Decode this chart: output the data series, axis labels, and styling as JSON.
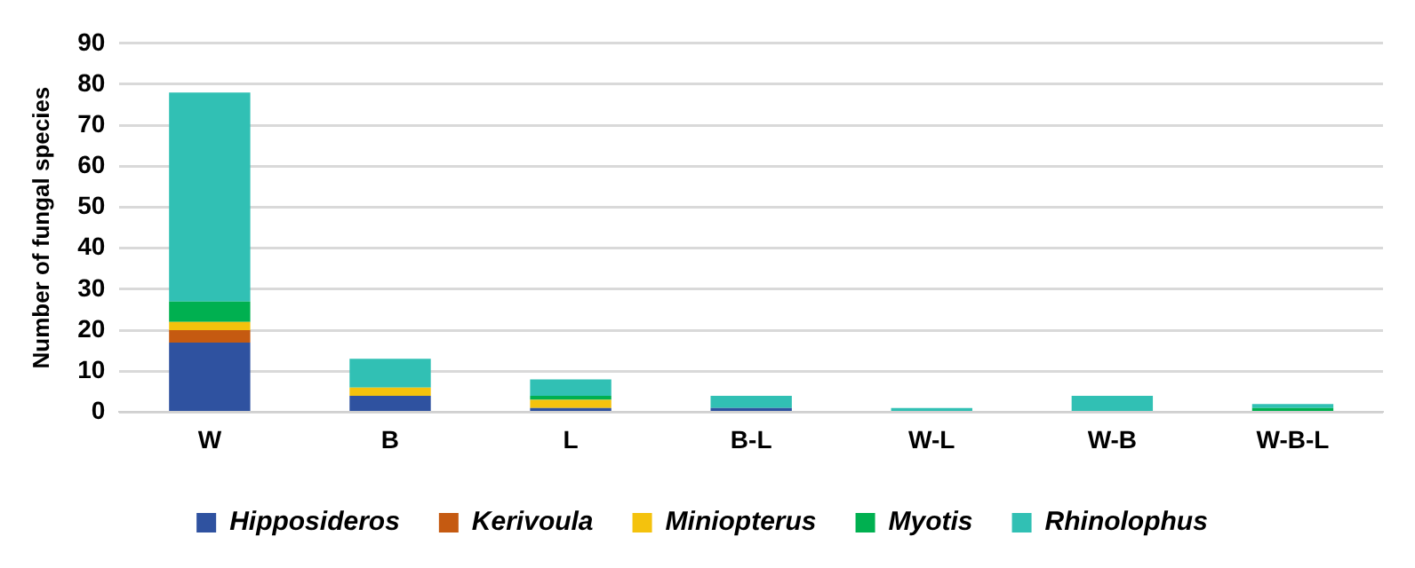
{
  "chart_data": {
    "type": "bar",
    "ylabel": "Number of fungal species",
    "categories": [
      "W",
      "B",
      "L",
      "B-L",
      "W-L",
      "W-B",
      "W-B-L"
    ],
    "stacked": true,
    "ylim": [
      0,
      90
    ],
    "yticks": [
      0,
      10,
      20,
      30,
      40,
      50,
      60,
      70,
      80,
      90
    ],
    "grid": "y",
    "legend": "bottom",
    "series": [
      {
        "name": "Hipposideros",
        "color": "#2f52a0",
        "values": [
          17,
          4,
          1,
          1,
          0,
          0,
          0
        ]
      },
      {
        "name": "Kerivoula",
        "color": "#c55a11",
        "values": [
          3,
          0,
          0,
          0,
          0,
          0,
          0
        ]
      },
      {
        "name": "Miniopterus",
        "color": "#f4c20d",
        "values": [
          2,
          2,
          2,
          0,
          0,
          0,
          0
        ]
      },
      {
        "name": "Myotis",
        "color": "#00b050",
        "values": [
          5,
          0,
          1,
          0,
          0,
          0,
          1
        ]
      },
      {
        "name": "Rhinolophus",
        "color": "#31c0b4",
        "values": [
          51,
          7,
          4,
          3,
          1,
          4,
          1
        ]
      }
    ]
  }
}
